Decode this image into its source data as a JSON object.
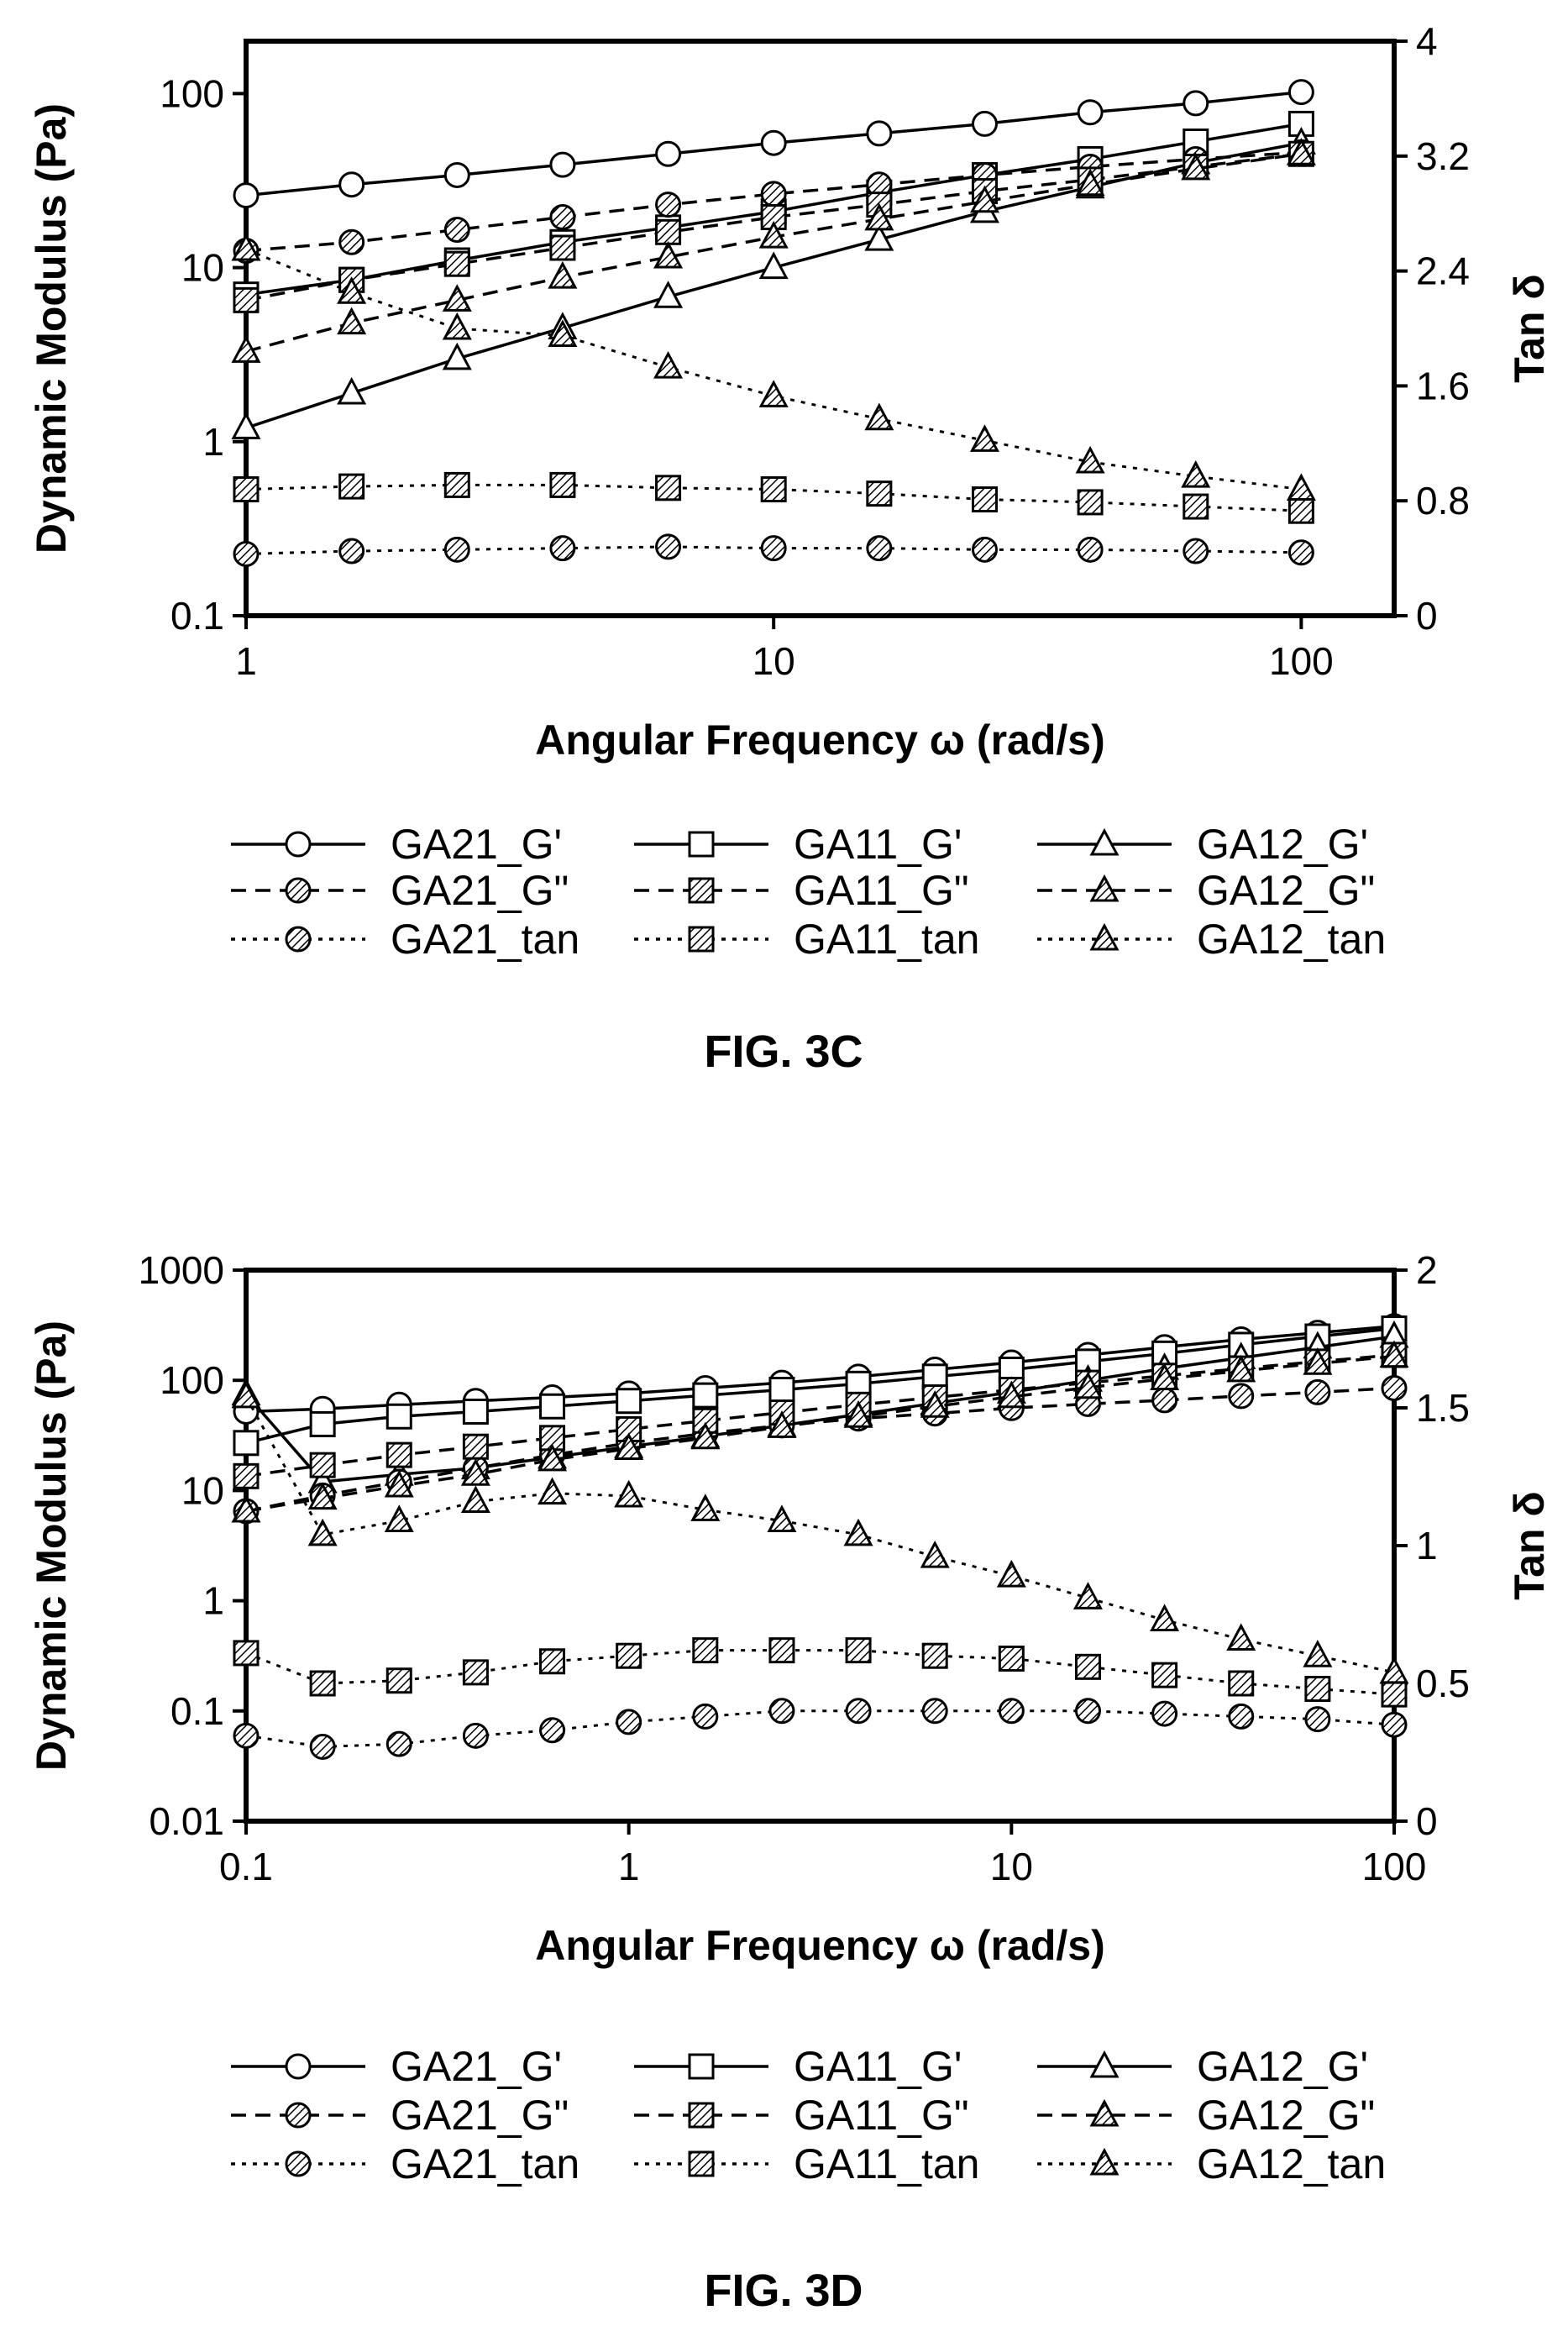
{
  "chart_data": [
    {
      "type": "line",
      "caption": "FIG. 3C",
      "xlabel": "Angular Frequency ω (rad/s)",
      "ylabel": "Dynamic Modulus (Pa)",
      "y2label": "Tan δ",
      "xscale": "log",
      "yscale": "log",
      "xlim": [
        1,
        150
      ],
      "ylim": [
        0.1,
        200
      ],
      "y2lim": [
        0,
        4
      ],
      "xticks": [
        1,
        10,
        100
      ],
      "xtick_labels": [
        "1",
        "10",
        "100"
      ],
      "yticks": [
        0.1,
        1,
        10,
        100
      ],
      "ytick_labels": [
        "0.1",
        "1",
        "10",
        "100"
      ],
      "y2ticks": [
        0,
        0.8,
        1.6,
        2.4,
        3.2,
        4
      ],
      "y2tick_labels": [
        "0",
        "0.8",
        "1.6",
        "2.4",
        "3.2",
        "4"
      ],
      "grid": false,
      "legend_position": "below",
      "x": [
        1,
        1.585,
        2.512,
        3.981,
        6.31,
        10,
        15.85,
        25.12,
        39.81,
        63.1,
        100
      ],
      "series": [
        {
          "name": "GA21_G'",
          "axis": "left",
          "marker": "circle",
          "fill": "open",
          "line": "solid",
          "values": [
            26,
            30,
            34,
            39,
            45,
            52,
            59,
            67,
            78,
            88,
            102
          ]
        },
        {
          "name": "GA11_G'",
          "axis": "left",
          "marker": "square",
          "fill": "open",
          "line": "solid",
          "values": [
            7,
            8.5,
            11,
            14,
            17,
            21,
            27,
            34,
            42,
            53,
            67
          ]
        },
        {
          "name": "GA12_G'",
          "axis": "left",
          "marker": "triangle",
          "fill": "open",
          "line": "solid",
          "values": [
            1.2,
            1.9,
            3,
            4.5,
            6.8,
            10,
            14.5,
            21,
            29,
            40,
            52
          ]
        },
        {
          "name": "GA21_G\"",
          "axis": "left",
          "marker": "circle",
          "fill": "hatched",
          "line": "dashed",
          "values": [
            12.5,
            14,
            16.5,
            19.5,
            23,
            26.5,
            30,
            34,
            38,
            42,
            46
          ]
        },
        {
          "name": "GA11_G\"",
          "axis": "left",
          "marker": "square",
          "fill": "hatched",
          "line": "dashed",
          "values": [
            6.5,
            8.5,
            10.5,
            13,
            16,
            19.5,
            23,
            27.5,
            32,
            38,
            45
          ]
        },
        {
          "name": "GA12_G\"",
          "axis": "left",
          "marker": "triangle",
          "fill": "hatched",
          "line": "dashed",
          "values": [
            3.3,
            4.8,
            6.5,
            8.8,
            11.5,
            15,
            19,
            24,
            30,
            37,
            45
          ]
        },
        {
          "name": "GA21_tan",
          "axis": "right",
          "marker": "circle",
          "fill": "hatched",
          "line": "dotted",
          "values": [
            0.43,
            0.45,
            0.46,
            0.47,
            0.48,
            0.47,
            0.47,
            0.46,
            0.46,
            0.45,
            0.44
          ]
        },
        {
          "name": "GA11_tan",
          "axis": "right",
          "marker": "square",
          "fill": "hatched",
          "line": "dotted",
          "values": [
            0.88,
            0.9,
            0.91,
            0.91,
            0.89,
            0.88,
            0.85,
            0.81,
            0.79,
            0.76,
            0.73
          ]
        },
        {
          "name": "GA12_tan",
          "axis": "right",
          "marker": "triangle",
          "fill": "hatched",
          "line": "dotted",
          "values": [
            2.55,
            2.25,
            2.0,
            1.95,
            1.73,
            1.53,
            1.37,
            1.22,
            1.07,
            0.97,
            0.88
          ]
        }
      ]
    },
    {
      "type": "line",
      "caption": "FIG. 3D",
      "xlabel": "Angular Frequency ω (rad/s)",
      "ylabel": "Dynamic Modulus (Pa)",
      "y2label": "Tan δ",
      "xscale": "log",
      "yscale": "log",
      "xlim": [
        0.1,
        100
      ],
      "ylim": [
        0.01,
        1000
      ],
      "y2lim": [
        0,
        2
      ],
      "xticks": [
        0.1,
        1,
        10,
        100
      ],
      "xtick_labels": [
        "0.1",
        "1",
        "10",
        "100"
      ],
      "yticks": [
        0.01,
        0.1,
        1,
        10,
        100,
        1000
      ],
      "ytick_labels": [
        "0.01",
        "0.1",
        "1",
        "10",
        "100",
        "1000"
      ],
      "y2ticks": [
        0,
        0.5,
        1,
        1.5,
        2
      ],
      "y2tick_labels": [
        "0",
        "0.5",
        "1",
        "1.5",
        "2"
      ],
      "grid": false,
      "legend_position": "below",
      "x": [
        0.1,
        0.1585,
        0.2512,
        0.3981,
        0.631,
        1,
        1.585,
        2.512,
        3.981,
        6.31,
        10,
        15.85,
        25.12,
        39.81,
        63.1,
        100
      ],
      "series": [
        {
          "name": "GA21_G'",
          "axis": "left",
          "marker": "circle",
          "fill": "open",
          "line": "solid",
          "values": [
            52,
            55,
            60,
            65,
            70,
            76,
            85,
            95,
            108,
            125,
            145,
            170,
            200,
            235,
            270,
            310
          ]
        },
        {
          "name": "GA11_G'",
          "axis": "left",
          "marker": "square",
          "fill": "open",
          "line": "solid",
          "values": [
            27,
            40,
            47,
            52,
            58,
            65,
            73,
            82,
            93,
            108,
            125,
            148,
            175,
            210,
            250,
            295
          ]
        },
        {
          "name": "GA12_G'",
          "axis": "left",
          "marker": "triangle",
          "fill": "open",
          "line": "solid",
          "values": [
            75,
            12,
            14,
            16,
            20,
            25,
            31,
            39,
            49,
            62,
            78,
            100,
            128,
            160,
            200,
            250
          ]
        },
        {
          "name": "GA21_G\"",
          "axis": "left",
          "marker": "circle",
          "fill": "hatched",
          "line": "dashed",
          "values": [
            6.5,
            9,
            12,
            16,
            21,
            27,
            33,
            39,
            45,
            50,
            56,
            61,
            66,
            72,
            78,
            85
          ]
        },
        {
          "name": "GA11_G\"",
          "axis": "left",
          "marker": "square",
          "fill": "hatched",
          "line": "dashed",
          "values": [
            13.5,
            17,
            21,
            25,
            30,
            36,
            43,
            51,
            60,
            70,
            82,
            95,
            110,
            128,
            148,
            170
          ]
        },
        {
          "name": "GA12_G\"",
          "axis": "left",
          "marker": "triangle",
          "fill": "hatched",
          "line": "dashed",
          "values": [
            6.5,
            8.5,
            11,
            14,
            19,
            24,
            30,
            38,
            47,
            58,
            71,
            86,
            103,
            122,
            142,
            165
          ]
        },
        {
          "name": "GA21_tan",
          "axis": "right",
          "marker": "circle",
          "fill": "hatched",
          "line": "dotted",
          "values": [
            0.31,
            0.27,
            0.28,
            0.31,
            0.33,
            0.36,
            0.38,
            0.4,
            0.4,
            0.4,
            0.4,
            0.4,
            0.39,
            0.38,
            0.37,
            0.35
          ]
        },
        {
          "name": "GA11_tan",
          "axis": "right",
          "marker": "square",
          "fill": "hatched",
          "line": "dotted",
          "values": [
            0.61,
            0.5,
            0.51,
            0.54,
            0.58,
            0.6,
            0.62,
            0.62,
            0.62,
            0.6,
            0.59,
            0.56,
            0.53,
            0.5,
            0.48,
            0.46
          ]
        },
        {
          "name": "GA12_tan",
          "axis": "right",
          "marker": "triangle",
          "fill": "hatched",
          "line": "dotted",
          "values": [
            1.54,
            1.04,
            1.09,
            1.16,
            1.19,
            1.18,
            1.13,
            1.09,
            1.04,
            0.96,
            0.89,
            0.81,
            0.73,
            0.66,
            0.6,
            0.54
          ]
        }
      ]
    }
  ]
}
